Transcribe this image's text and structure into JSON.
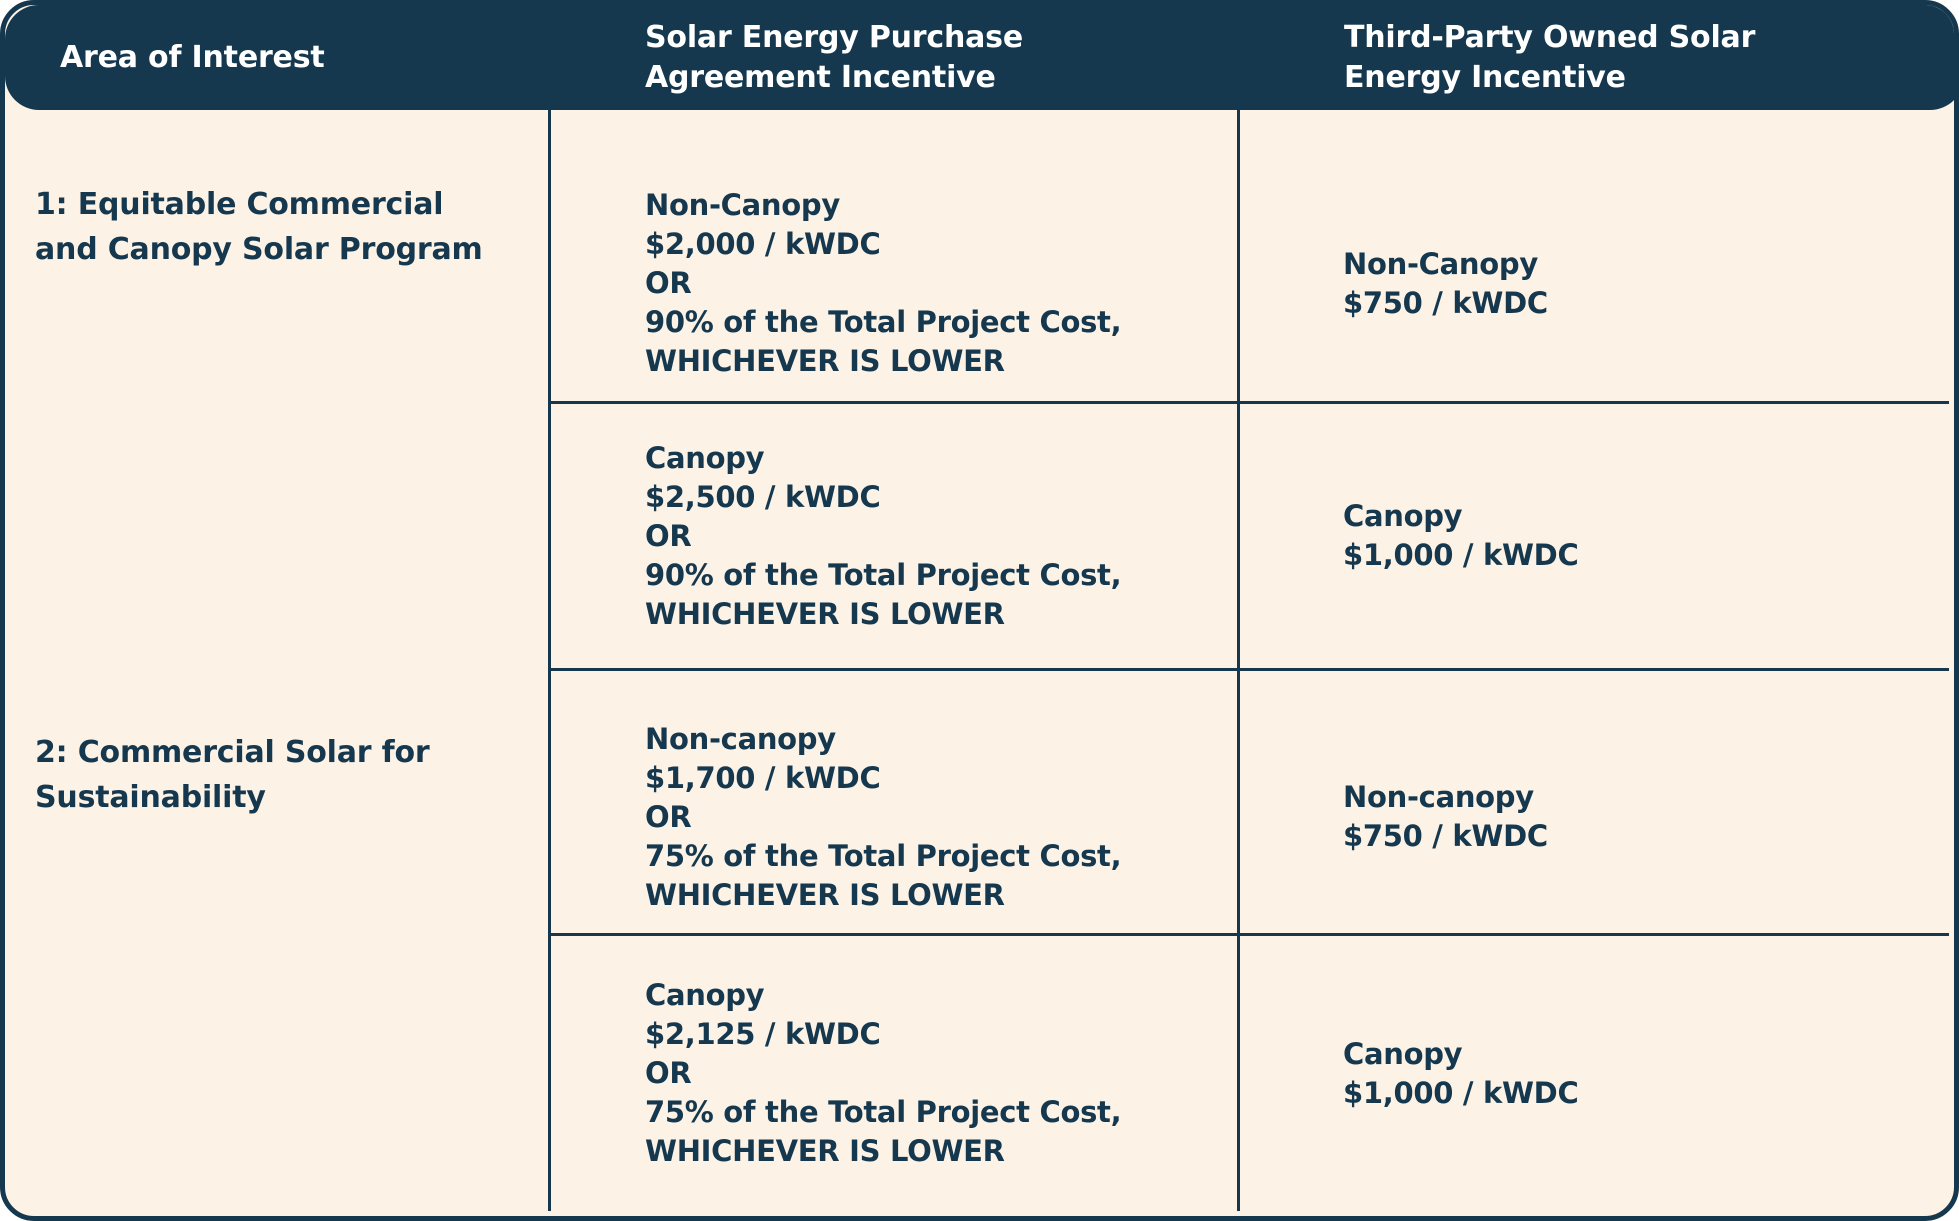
{
  "colors": {
    "navy": "#15384F",
    "cream": "#FCF2E6",
    "page_background": "#FFFFFF",
    "header_text": "#FFFFFF"
  },
  "table": {
    "header": {
      "area_of_interest": "Area of Interest",
      "sepa_incentive": "Solar Energy Purchase\nAgreement Incentive",
      "tpo_incentive": "Third-Party Owned Solar\nEnergy Incentive"
    },
    "programs": [
      {
        "label": "1: Equitable Commercial and Canopy Solar Program",
        "rows": [
          {
            "sepa": [
              "Non-Canopy",
              "$2,000 / kWDC",
              "OR",
              "90% of the Total Project Cost,",
              "WHICHEVER IS LOWER"
            ],
            "tpo": [
              "Non-Canopy",
              "$750 / kWDC"
            ]
          },
          {
            "sepa": [
              "Canopy",
              "$2,500 / kWDC",
              "OR",
              "90% of the Total Project Cost,",
              "WHICHEVER IS LOWER"
            ],
            "tpo": [
              "Canopy",
              "$1,000 / kWDC"
            ]
          }
        ]
      },
      {
        "label": "2: Commercial Solar for Sustainability",
        "rows": [
          {
            "sepa": [
              "Non-canopy",
              "$1,700 / kWDC",
              "OR",
              "75% of the Total Project Cost,",
              "WHICHEVER IS LOWER"
            ],
            "tpo": [
              "Non-canopy",
              "$750 / kWDC"
            ]
          },
          {
            "sepa": [
              "Canopy",
              "$2,125 / kWDC",
              "OR",
              "75% of the Total Project Cost,",
              "WHICHEVER IS LOWER"
            ],
            "tpo": [
              "Canopy",
              "$1,000 / kWDC"
            ]
          }
        ]
      }
    ]
  }
}
